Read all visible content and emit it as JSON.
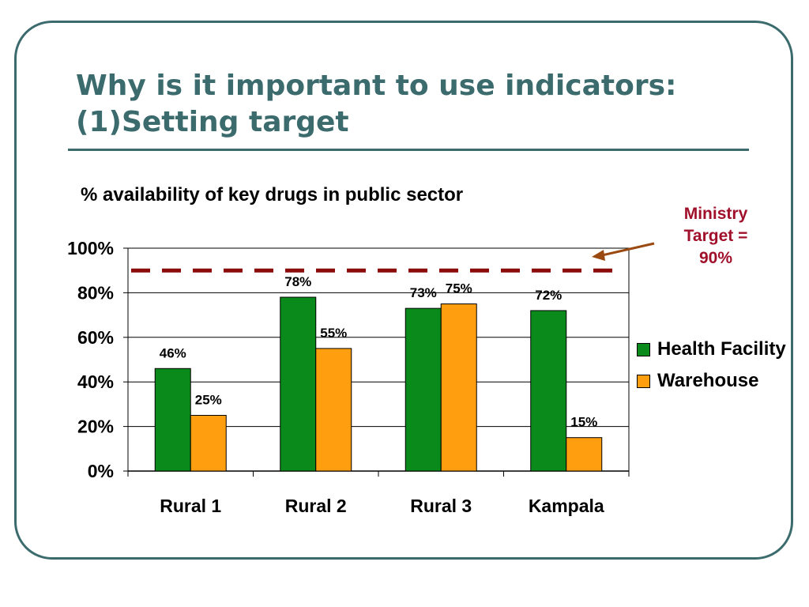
{
  "slide": {
    "title_line1": "Why is it important to use indicators:",
    "title_line2": "(1)Setting target",
    "callout_line1": "Ministry",
    "callout_line2": "Target =",
    "callout_line3": "90%"
  },
  "colors": {
    "frame": "#3b6b6d",
    "title": "#3b6b6d",
    "health_facility": "#0a8a1a",
    "warehouse": "#ff9e0f",
    "target_line": "#8b0a0a",
    "callout_text": "#a0102a",
    "arrow": "#9a4a10"
  },
  "chart_data": {
    "type": "bar",
    "title": "% availability of key drugs in public sector",
    "categories": [
      "Rural 1",
      "Rural 2",
      "Rural 3",
      "Kampala"
    ],
    "series": [
      {
        "name": "Health Facility",
        "values": [
          46,
          78,
          73,
          72
        ],
        "labels": [
          "46%",
          "78%",
          "73%",
          "72%"
        ]
      },
      {
        "name": "Warehouse",
        "values": [
          25,
          55,
          75,
          15
        ],
        "labels": [
          "25%",
          "55%",
          "75%",
          "15%"
        ]
      }
    ],
    "ylim": [
      0,
      100
    ],
    "yticks": [
      0,
      20,
      40,
      60,
      80,
      100
    ],
    "ytick_labels": [
      "0%",
      "20%",
      "40%",
      "60%",
      "80%",
      "100%"
    ],
    "grid": true,
    "target": {
      "value": 90,
      "style": "dashed"
    },
    "legend": "right",
    "xlabel": "",
    "ylabel": ""
  }
}
